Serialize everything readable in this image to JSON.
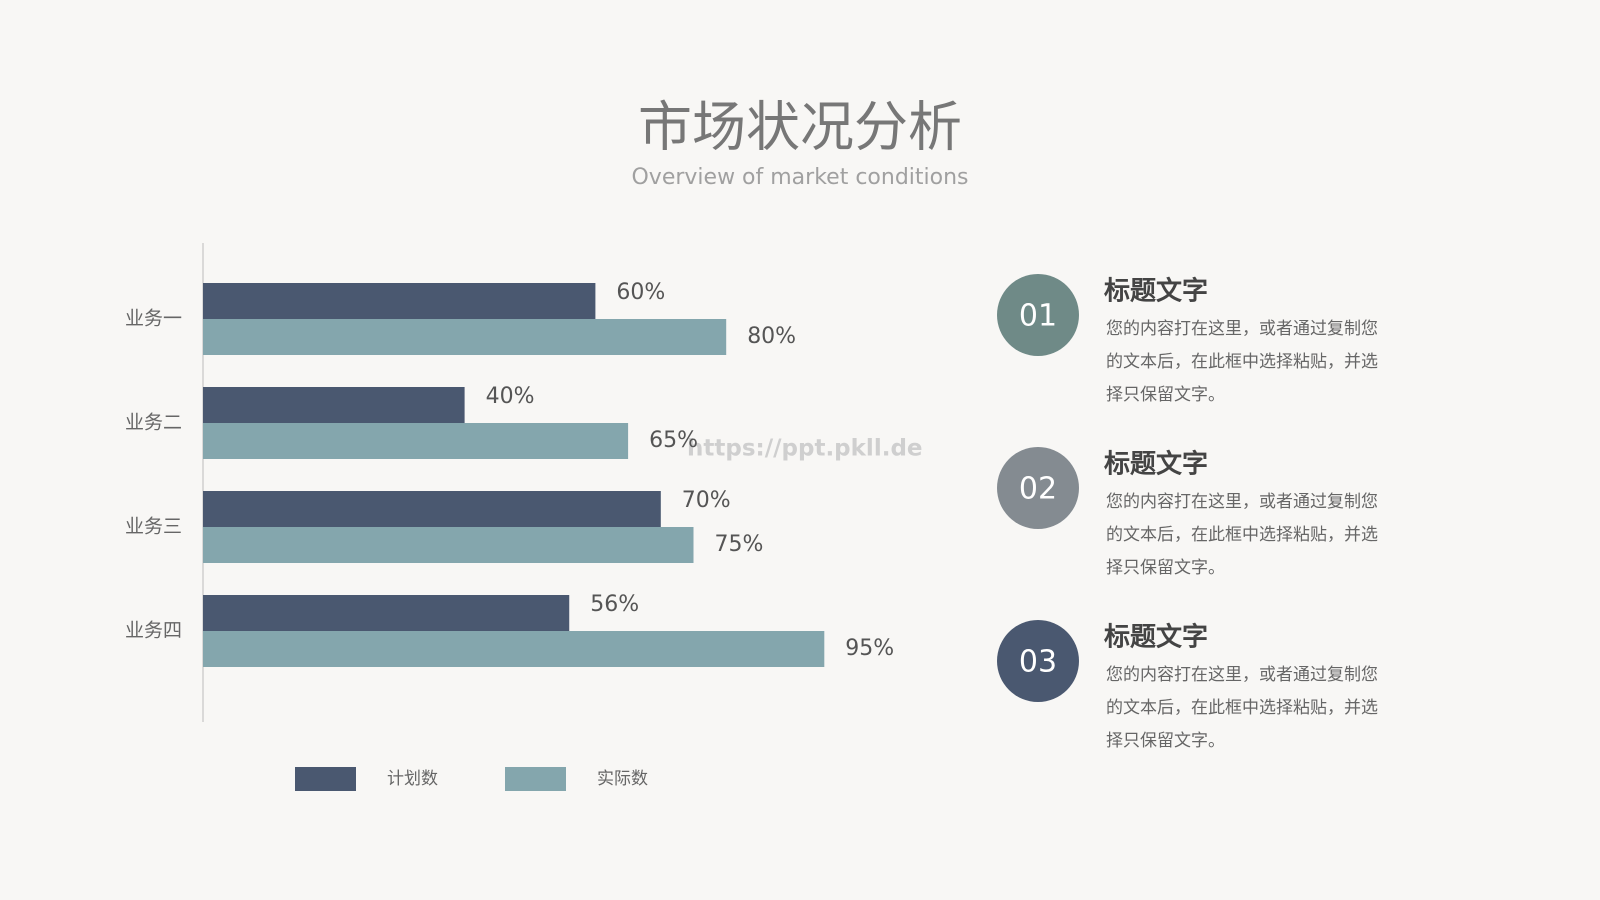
{
  "chart_data": {
    "type": "hbar",
    "title": "市场状况分析",
    "subtitle": "Overview of market conditions",
    "categories": [
      "业务一",
      "业务二",
      "业务三",
      "业务四"
    ],
    "series": [
      {
        "name": "计划数",
        "color": "#4a5870",
        "values": [
          60,
          40,
          70,
          56
        ],
        "value_labels": [
          "60%",
          "40%",
          "70%",
          "56%"
        ]
      },
      {
        "name": "实际数",
        "color": "#84a6ad",
        "values": [
          80,
          65,
          75,
          95
        ],
        "value_labels": [
          "80%",
          "65%",
          "75%",
          "95%"
        ]
      }
    ],
    "xlim": [
      0,
      100
    ],
    "legend": "bottom"
  },
  "watermark": "https://ppt.pkll.de",
  "items": [
    {
      "number": "01",
      "color": "#6f8a87",
      "heading": "标题文字",
      "body": [
        "您的内容打在这里，或者通过复制您",
        "的文本后，在此框中选择粘贴，并选",
        "择只保留文字。"
      ]
    },
    {
      "number": "02",
      "color": "#848b91",
      "heading": "标题文字",
      "body": [
        "您的内容打在这里，或者通过复制您",
        "的文本后，在此框中选择粘贴，并选",
        "择只保留文字。"
      ]
    },
    {
      "number": "03",
      "color": "#4a5870",
      "heading": "标题文字",
      "body": [
        "您的内容打在这里，或者通过复制您",
        "的文本后，在此框中选择粘贴，并选",
        "择只保留文字。"
      ]
    }
  ]
}
